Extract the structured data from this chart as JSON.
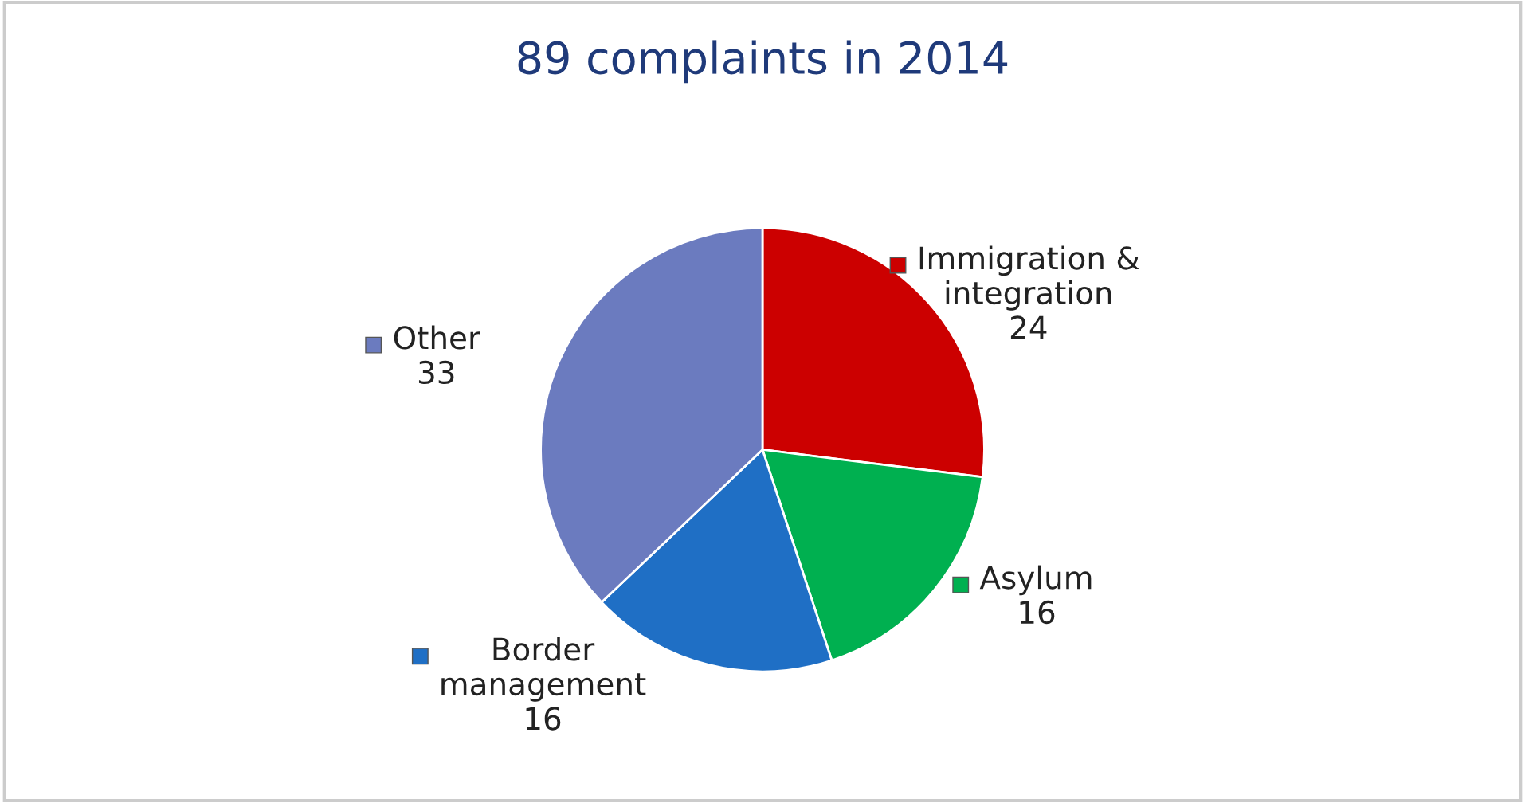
{
  "chart_data": {
    "type": "pie",
    "title": "89 complaints in 2014",
    "categories": [
      "Immigration &\nintegration",
      "Asylum",
      "Border\nmanagement",
      "Other"
    ],
    "values": [
      24,
      16,
      16,
      33
    ],
    "colors": [
      "#cc0000",
      "#00b050",
      "#1f6fc5",
      "#6b7bbf"
    ],
    "data_labels": true,
    "legend": true
  }
}
